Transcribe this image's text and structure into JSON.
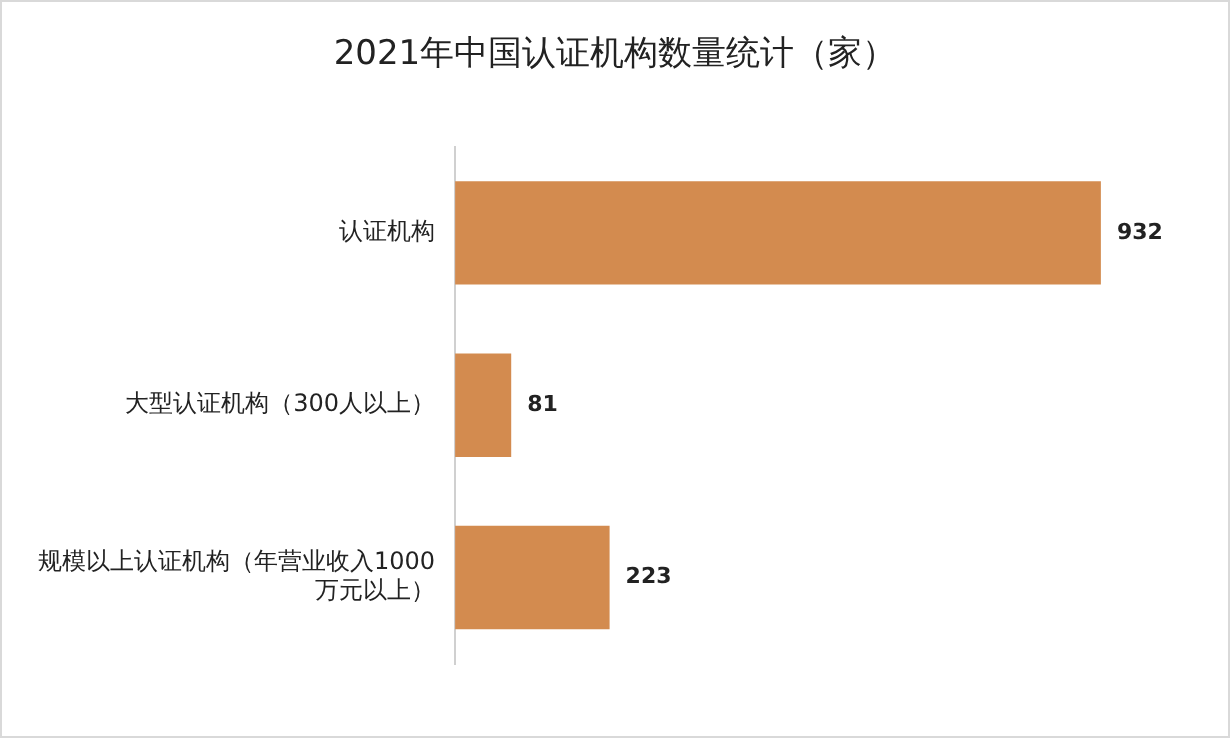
{
  "chart_data": {
    "type": "bar",
    "orientation": "horizontal",
    "title": "2021年中国认证机构数量统计（家）",
    "categories": [
      "认证机构",
      "大型认证机构（300人以上）",
      "规模以上认证机构（年营业收入1000万元以上）"
    ],
    "values": [
      932,
      81,
      223
    ],
    "color": "#d38b4f",
    "data_labels": true,
    "grid": false,
    "legend": false
  }
}
